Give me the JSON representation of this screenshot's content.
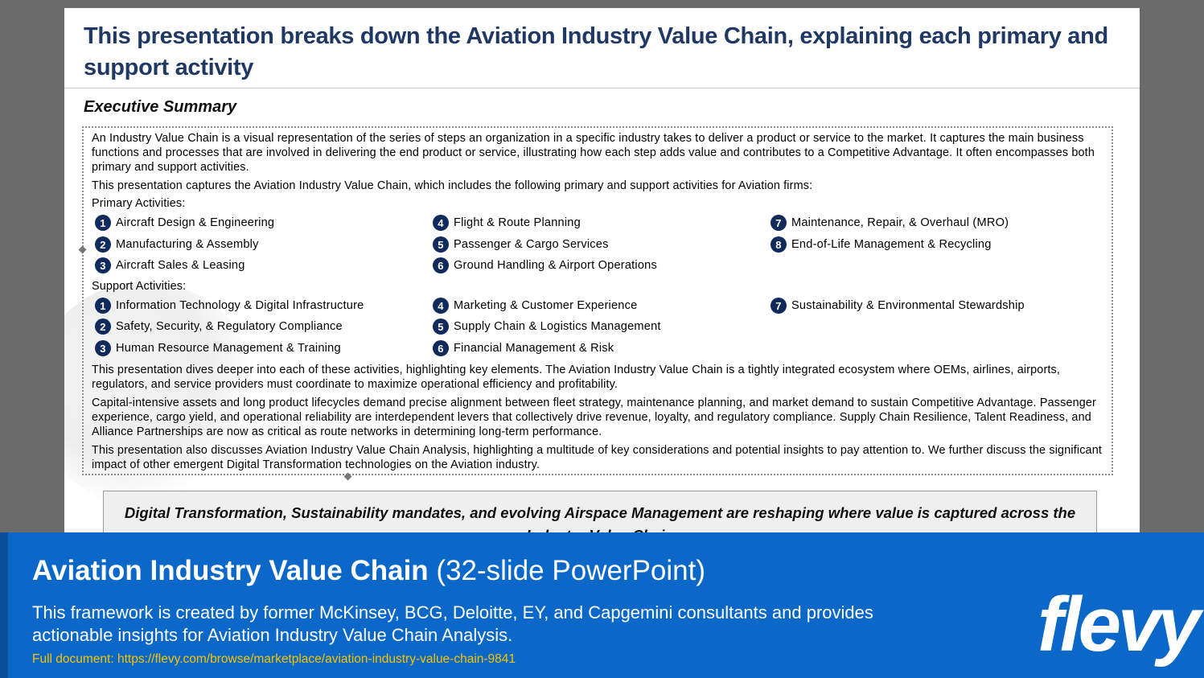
{
  "slide": {
    "title": "This presentation breaks down the Aviation Industry Value Chain, explaining each primary and support activity",
    "exec_heading": "Executive Summary",
    "intro": "An Industry Value Chain is a visual representation of the series of steps an organization in a specific industry takes to deliver a product or service to the market. It captures the main business functions and processes that are involved in delivering the end product or service, illustrating how each step adds value and contributes to a Competitive Advantage. It often encompasses both primary and support activities.",
    "captures": "This presentation captures the Aviation Industry Value Chain, which includes the following primary and support activities for Aviation firms:",
    "primary_label": "Primary Activities:",
    "primary": [
      {
        "num": "1",
        "label": "Aircraft Design & Engineering"
      },
      {
        "num": "2",
        "label": "Manufacturing & Assembly"
      },
      {
        "num": "3",
        "label": "Aircraft Sales & Leasing"
      },
      {
        "num": "4",
        "label": "Flight & Route Planning"
      },
      {
        "num": "5",
        "label": "Passenger & Cargo Services"
      },
      {
        "num": "6",
        "label": "Ground Handling & Airport Operations"
      },
      {
        "num": "7",
        "label": "Maintenance, Repair, & Overhaul (MRO)"
      },
      {
        "num": "8",
        "label": "End-of-Life Management & Recycling"
      }
    ],
    "support_label": "Support Activities:",
    "support": [
      {
        "num": "1",
        "label": "Information Technology & Digital Infrastructure"
      },
      {
        "num": "2",
        "label": "Safety, Security, & Regulatory Compliance"
      },
      {
        "num": "3",
        "label": "Human Resource Management & Training"
      },
      {
        "num": "4",
        "label": "Marketing & Customer Experience"
      },
      {
        "num": "5",
        "label": "Supply Chain & Logistics Management"
      },
      {
        "num": "6",
        "label": "Financial Management & Risk"
      },
      {
        "num": "7",
        "label": "Sustainability & Environmental Stewardship"
      }
    ],
    "dives": "This presentation dives deeper into each of these activities, highlighting key elements.  The Aviation Industry Value Chain is a tightly integrated ecosystem where OEMs, airlines, airports, regulators, and service providers must coordinate to maximize operational efficiency and profitability.",
    "capital": "Capital-intensive assets and long product lifecycles demand precise alignment between fleet strategy, maintenance planning, and market demand to sustain Competitive Advantage. Passenger experience, cargo yield, and operational reliability are interdependent levers that collectively drive revenue, loyalty, and regulatory compliance. Supply Chain Resilience, Talent Readiness, and Alliance Partnerships are now as critical as route networks in determining long-term performance.",
    "also": "This presentation also discusses Aviation Industry Value Chain Analysis, highlighting a multitude of key considerations and potential insights to pay attention to.  We further discuss the significant impact of other emergent Digital Transformation technologies on the Aviation industry.",
    "callout": "Digital Transformation, Sustainability mandates, and evolving Airspace Management are reshaping where value is captured across the Industry Value Chain"
  },
  "banner": {
    "title_strong": "Aviation Industry Value Chain",
    "title_light": " (32-slide PowerPoint)",
    "description": "This framework is created by former McKinsey, BCG, Deloitte, EY, and Capgemini consultants and provides actionable insights for Aviation Industry Value Chain Analysis.",
    "link": "Full document: https://flevy.com/browse/marketplace/aviation-industry-value-chain-9841",
    "logo": "flevy"
  },
  "colors": {
    "title": "#1f3864",
    "badge": "#102a5c",
    "banner": "#0b67c8",
    "link": "#f5c400"
  }
}
